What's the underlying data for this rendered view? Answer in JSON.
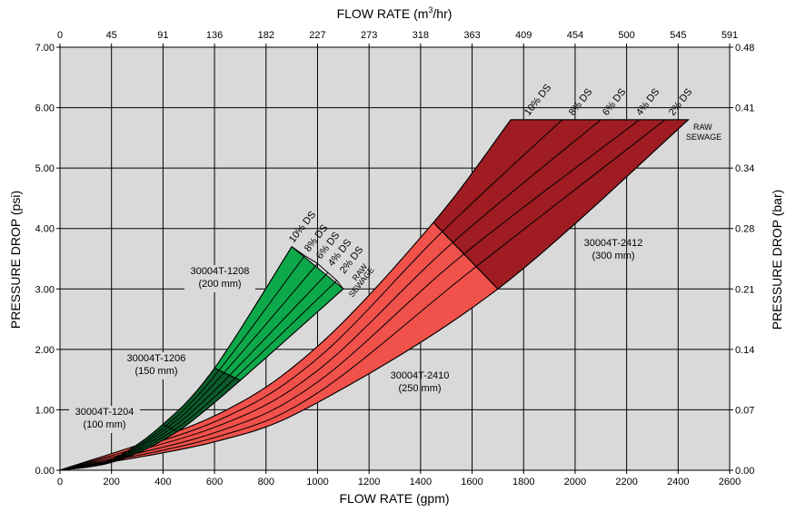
{
  "chart_data": {
    "type": "area",
    "xlabel": "FLOW RATE (gpm)",
    "x2label_main": "FLOW RATE (m",
    "x2label_sup": "3",
    "x2label_end": "/hr)",
    "ylabel": "PRESSURE DROP (psi)",
    "y2label": "PRESSURE DROP (bar)",
    "xlim": [
      0,
      2600
    ],
    "ylim": [
      0,
      7
    ],
    "grid": true,
    "x_ticks": [
      "0",
      "200",
      "400",
      "600",
      "800",
      "1000",
      "1200",
      "1400",
      "1600",
      "1800",
      "2000",
      "2200",
      "2400",
      "2600"
    ],
    "x2_ticks": [
      "0",
      "45",
      "91",
      "136",
      "182",
      "227",
      "273",
      "318",
      "363",
      "409",
      "454",
      "500",
      "545",
      "591"
    ],
    "y_ticks": [
      "0.00",
      "1.00",
      "2.00",
      "3.00",
      "4.00",
      "5.00",
      "6.00",
      "7.00"
    ],
    "y2_ticks": [
      "0.00",
      "0.07",
      "0.14",
      "0.21",
      "0.28",
      "0.34",
      "0.41",
      "0.48"
    ],
    "colors": {
      "plot_bg": "#d9d9d9",
      "green": "#0da84a",
      "green_dark": "#0b5d2b",
      "red": "#f0514a",
      "red_dark": "#9e1c22"
    },
    "bands": [
      {
        "id": "small",
        "curves": [
          {
            "label": "10% DS",
            "points": [
              [
                0,
                0
              ],
              [
                200,
                0.18
              ],
              [
                400,
                0.76
              ],
              [
                600,
                1.69
              ],
              [
                900,
                3.7
              ]
            ]
          },
          {
            "label": "8% DS",
            "points": [
              [
                0,
                0
              ],
              [
                200,
                0.17
              ],
              [
                400,
                0.7
              ],
              [
                600,
                1.56
              ],
              [
                950,
                3.55
              ]
            ]
          },
          {
            "label": "6% DS",
            "points": [
              [
                0,
                0
              ],
              [
                200,
                0.16
              ],
              [
                400,
                0.65
              ],
              [
                600,
                1.44
              ],
              [
                1000,
                3.42
              ]
            ]
          },
          {
            "label": "4% DS",
            "points": [
              [
                0,
                0
              ],
              [
                200,
                0.15
              ],
              [
                400,
                0.6
              ],
              [
                600,
                1.32
              ],
              [
                1040,
                3.27
              ]
            ]
          },
          {
            "label": "2% DS",
            "points": [
              [
                0,
                0
              ],
              [
                200,
                0.14
              ],
              [
                400,
                0.55
              ],
              [
                600,
                1.21
              ],
              [
                1075,
                3.14
              ]
            ]
          },
          {
            "label": "RAW SEWAGE",
            "points": [
              [
                0,
                0
              ],
              [
                200,
                0.13
              ],
              [
                400,
                0.5
              ],
              [
                600,
                1.12
              ],
              [
                1100,
                3.0
              ]
            ]
          }
        ]
      },
      {
        "id": "large",
        "curves": [
          {
            "label": "10% DS",
            "points": [
              [
                0,
                0
              ],
              [
                600,
                0.9
              ],
              [
                1000,
                2.05
              ],
              [
                1450,
                4.1
              ],
              [
                1750,
                5.8
              ]
            ]
          },
          {
            "label": "8% DS",
            "points": [
              [
                0,
                0
              ],
              [
                600,
                0.8
              ],
              [
                1000,
                1.85
              ],
              [
                1480,
                3.93
              ],
              [
                1950,
                5.8
              ]
            ]
          },
          {
            "label": "6% DS",
            "points": [
              [
                0,
                0
              ],
              [
                600,
                0.71
              ],
              [
                1000,
                1.65
              ],
              [
                1520,
                3.75
              ],
              [
                2100,
                5.8
              ]
            ]
          },
          {
            "label": "4% DS",
            "points": [
              [
                0,
                0
              ],
              [
                600,
                0.62
              ],
              [
                1000,
                1.46
              ],
              [
                1560,
                3.55
              ],
              [
                2250,
                5.8
              ]
            ]
          },
          {
            "label": "2% DS",
            "points": [
              [
                0,
                0
              ],
              [
                600,
                0.54
              ],
              [
                1000,
                1.28
              ],
              [
                1610,
                3.35
              ],
              [
                2350,
                5.8
              ]
            ]
          },
          {
            "label": "RAW SEWAGE",
            "points": [
              [
                0,
                0
              ],
              [
                600,
                0.47
              ],
              [
                1000,
                1.12
              ],
              [
                1700,
                3.0
              ],
              [
                2440,
                5.8
              ]
            ]
          }
        ]
      }
    ],
    "regions": [
      {
        "name": "30004T-1204",
        "size": "(100 mm)"
      },
      {
        "name": "30004T-1206",
        "size": "(150 mm)"
      },
      {
        "name": "30004T-1208",
        "size": "(200 mm)"
      },
      {
        "name": "30004T-2410",
        "size": "(250 mm)"
      },
      {
        "name": "30004T-2412",
        "size": "(300 mm)"
      }
    ],
    "ds_labels_small": [
      "10% DS",
      "8% DS",
      "6% DS",
      "4% DS",
      "2% DS",
      "RAW",
      "SEWAGE"
    ],
    "ds_labels_large": [
      "10% DS",
      "8% DS",
      "6% DS",
      "4% DS",
      "2% DS",
      "RAW",
      "SEWAGE"
    ]
  }
}
